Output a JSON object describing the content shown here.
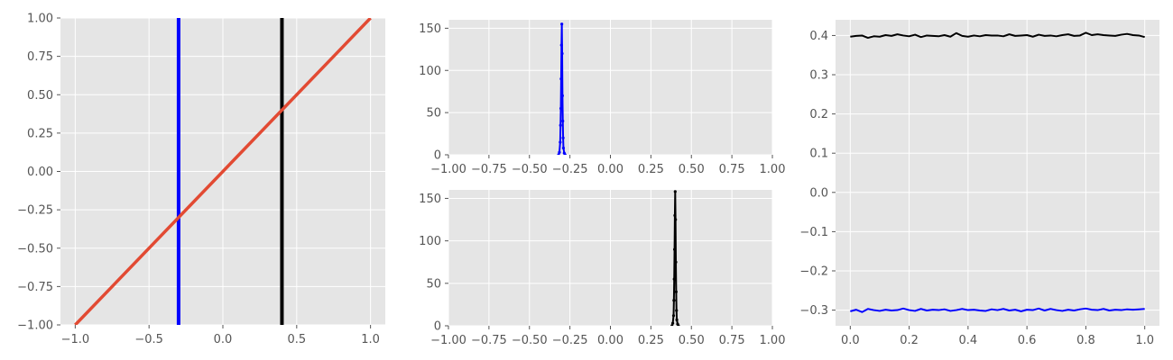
{
  "colors": {
    "background": "#ffffff",
    "axes_face": "#e5e5e5",
    "grid": "#ffffff",
    "tick_text": "#555555",
    "red_line": "#e24a33",
    "blue": "#0000ff",
    "black": "#000000"
  },
  "chart_data": [
    {
      "type": "line",
      "title": "",
      "xlabel": "",
      "ylabel": "",
      "xlim": [
        -1.1,
        1.1
      ],
      "ylim": [
        -1.0,
        1.0
      ],
      "xticks": [
        -1.0,
        -0.5,
        0.0,
        0.5,
        1.0
      ],
      "xtick_labels": [
        "−1.0",
        "−0.5",
        "0.0",
        "0.5",
        "1.0"
      ],
      "yticks": [
        -1.0,
        -0.75,
        -0.5,
        -0.25,
        0.0,
        0.25,
        0.5,
        0.75,
        1.0
      ],
      "ytick_labels": [
        "−1.00",
        "−0.75",
        "−0.50",
        "−0.25",
        "0.00",
        "0.25",
        "0.50",
        "0.75",
        "1.00"
      ],
      "grid": true,
      "series": [
        {
          "x": [
            -1.0,
            1.0
          ],
          "y": [
            -1.0,
            1.0
          ],
          "color": "#e24a33"
        }
      ],
      "vertical_lines": [
        {
          "x": -0.3,
          "color": "#0000ff"
        },
        {
          "x": 0.4,
          "color": "#000000"
        }
      ]
    },
    {
      "type": "line",
      "title": "",
      "xlabel": "",
      "ylabel": "",
      "xlim": [
        -1.0,
        1.0
      ],
      "ylim": [
        0,
        160
      ],
      "xticks": [
        -1.0,
        -0.75,
        -0.5,
        -0.25,
        0.0,
        0.25,
        0.5,
        0.75,
        1.0
      ],
      "xtick_labels": [
        "−1.00",
        "−0.75",
        "−0.50",
        "−0.25",
        "0.00",
        "0.25",
        "0.50",
        "0.75",
        "1.00"
      ],
      "yticks": [
        0,
        50,
        100,
        150
      ],
      "ytick_labels": [
        "0",
        "50",
        "100",
        "150"
      ],
      "grid": true,
      "series": [
        {
          "color": "#0000ff",
          "x": [
            -0.32,
            -0.315,
            -0.31,
            -0.308,
            -0.306,
            -0.304,
            -0.302,
            -0.3,
            -0.298,
            -0.296,
            -0.294,
            -0.292,
            -0.29,
            -0.285,
            -0.28
          ],
          "y": [
            0,
            3,
            15,
            35,
            55,
            90,
            130,
            155,
            120,
            70,
            40,
            20,
            8,
            2,
            0
          ]
        }
      ]
    },
    {
      "type": "line",
      "title": "",
      "xlabel": "",
      "ylabel": "",
      "xlim": [
        -1.0,
        1.0
      ],
      "ylim": [
        0,
        160
      ],
      "xticks": [
        -1.0,
        -0.75,
        -0.5,
        -0.25,
        0.0,
        0.25,
        0.5,
        0.75,
        1.0
      ],
      "xtick_labels": [
        "−1.00",
        "−0.75",
        "−0.50",
        "−0.25",
        "0.00",
        "0.25",
        "0.50",
        "0.75",
        "1.00"
      ],
      "yticks": [
        0,
        50,
        100,
        150
      ],
      "ytick_labels": [
        "0",
        "50",
        "100",
        "150"
      ],
      "grid": true,
      "series": [
        {
          "color": "#000000",
          "x": [
            0.38,
            0.385,
            0.39,
            0.392,
            0.394,
            0.396,
            0.398,
            0.4,
            0.402,
            0.404,
            0.406,
            0.408,
            0.41,
            0.415,
            0.42
          ],
          "y": [
            0,
            3,
            12,
            30,
            55,
            90,
            130,
            158,
            125,
            75,
            40,
            18,
            7,
            2,
            0
          ]
        }
      ]
    },
    {
      "type": "line",
      "title": "",
      "xlabel": "",
      "ylabel": "",
      "xlim": [
        -0.05,
        1.05
      ],
      "ylim": [
        -0.34,
        0.44
      ],
      "xticks": [
        0.0,
        0.2,
        0.4,
        0.6,
        0.8,
        1.0
      ],
      "xtick_labels": [
        "0.0",
        "0.2",
        "0.4",
        "0.6",
        "0.8",
        "1.0"
      ],
      "yticks": [
        -0.3,
        -0.2,
        -0.1,
        0.0,
        0.1,
        0.2,
        0.3,
        0.4
      ],
      "ytick_labels": [
        "−0.3",
        "−0.2",
        "−0.1",
        "0.0",
        "0.1",
        "0.2",
        "0.3",
        "0.4"
      ],
      "grid": true,
      "series": [
        {
          "color": "#000000",
          "x": [
            0.0,
            0.02,
            0.04,
            0.06,
            0.08,
            0.1,
            0.12,
            0.14,
            0.16,
            0.18,
            0.2,
            0.22,
            0.24,
            0.26,
            0.28,
            0.3,
            0.32,
            0.34,
            0.36,
            0.38,
            0.4,
            0.42,
            0.44,
            0.46,
            0.48,
            0.5,
            0.52,
            0.54,
            0.56,
            0.58,
            0.6,
            0.62,
            0.64,
            0.66,
            0.68,
            0.7,
            0.72,
            0.74,
            0.76,
            0.78,
            0.8,
            0.82,
            0.84,
            0.86,
            0.88,
            0.9,
            0.92,
            0.94,
            0.96,
            0.98,
            1.0
          ],
          "y": [
            0.397,
            0.399,
            0.4,
            0.394,
            0.398,
            0.397,
            0.401,
            0.399,
            0.403,
            0.4,
            0.398,
            0.402,
            0.396,
            0.4,
            0.399,
            0.398,
            0.401,
            0.397,
            0.406,
            0.399,
            0.397,
            0.4,
            0.398,
            0.401,
            0.4,
            0.4,
            0.398,
            0.403,
            0.399,
            0.4,
            0.401,
            0.397,
            0.402,
            0.399,
            0.4,
            0.398,
            0.401,
            0.403,
            0.399,
            0.4,
            0.407,
            0.401,
            0.403,
            0.401,
            0.4,
            0.399,
            0.402,
            0.404,
            0.401,
            0.4,
            0.396
          ]
        },
        {
          "color": "#0000ff",
          "x": [
            0.0,
            0.02,
            0.04,
            0.06,
            0.08,
            0.1,
            0.12,
            0.14,
            0.16,
            0.18,
            0.2,
            0.22,
            0.24,
            0.26,
            0.28,
            0.3,
            0.32,
            0.34,
            0.36,
            0.38,
            0.4,
            0.42,
            0.44,
            0.46,
            0.48,
            0.5,
            0.52,
            0.54,
            0.56,
            0.58,
            0.6,
            0.62,
            0.64,
            0.66,
            0.68,
            0.7,
            0.72,
            0.74,
            0.76,
            0.78,
            0.8,
            0.82,
            0.84,
            0.86,
            0.88,
            0.9,
            0.92,
            0.94,
            0.96,
            0.98,
            1.0
          ],
          "y": [
            -0.303,
            -0.299,
            -0.305,
            -0.297,
            -0.3,
            -0.302,
            -0.299,
            -0.301,
            -0.3,
            -0.296,
            -0.3,
            -0.302,
            -0.297,
            -0.301,
            -0.299,
            -0.3,
            -0.298,
            -0.302,
            -0.3,
            -0.297,
            -0.3,
            -0.299,
            -0.301,
            -0.302,
            -0.298,
            -0.3,
            -0.297,
            -0.301,
            -0.299,
            -0.303,
            -0.299,
            -0.3,
            -0.296,
            -0.301,
            -0.297,
            -0.3,
            -0.302,
            -0.299,
            -0.301,
            -0.298,
            -0.296,
            -0.299,
            -0.3,
            -0.297,
            -0.301,
            -0.299,
            -0.3,
            -0.298,
            -0.299,
            -0.298,
            -0.297
          ]
        }
      ]
    }
  ]
}
